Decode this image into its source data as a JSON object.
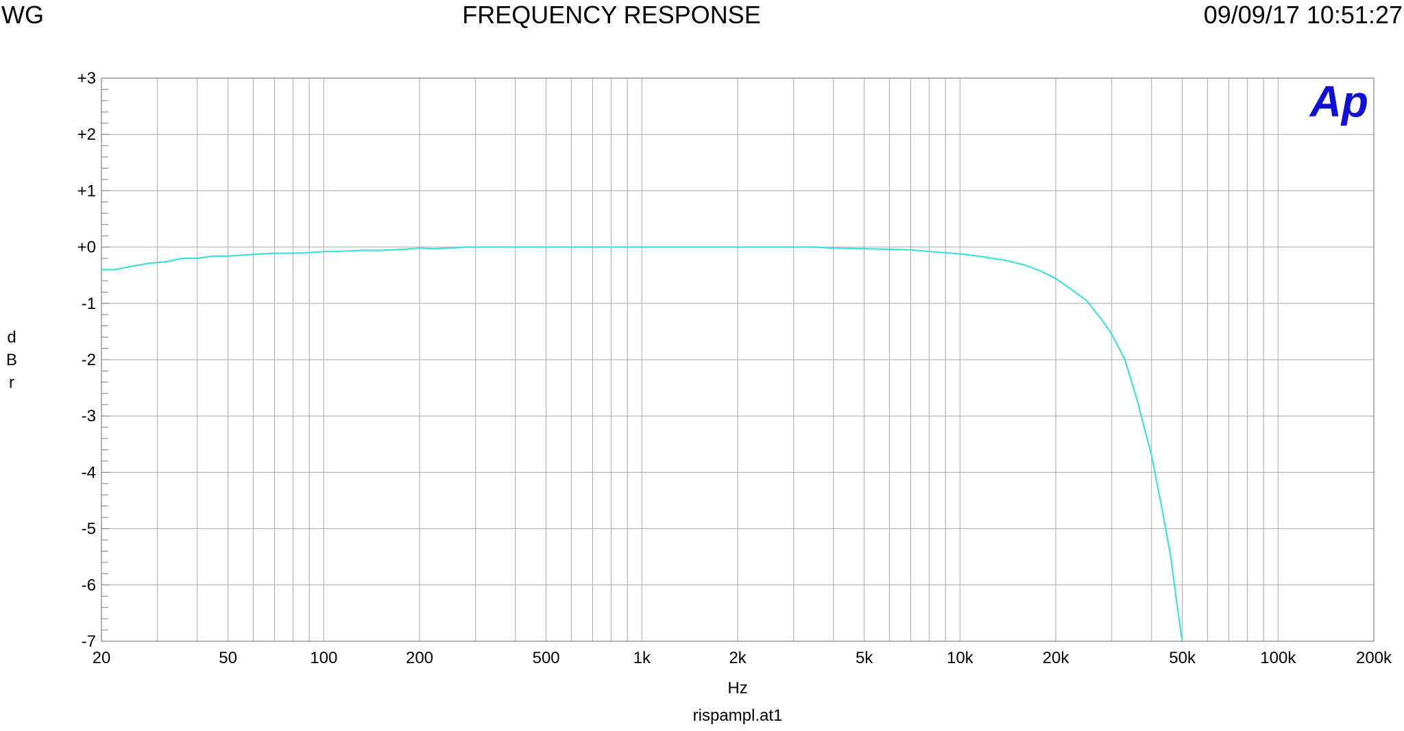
{
  "header": {
    "left": "WG",
    "title": "FREQUENCY RESPONSE",
    "timestamp": "09/09/17 10:51:27"
  },
  "logo": {
    "text": "Ap",
    "color": "#1010d0"
  },
  "chart_data": {
    "type": "line",
    "title": "FREQUENCY RESPONSE",
    "xlabel": "Hz",
    "ylabel": "dBr",
    "caption": "rispampl.at1",
    "x_scale": "log",
    "xlim": [
      20,
      200000
    ],
    "ylim": [
      -7,
      3
    ],
    "grid": true,
    "x_tick_labels": [
      {
        "value": 20,
        "label": "20"
      },
      {
        "value": 50,
        "label": "50"
      },
      {
        "value": 100,
        "label": "100"
      },
      {
        "value": 200,
        "label": "200"
      },
      {
        "value": 500,
        "label": "500"
      },
      {
        "value": 1000,
        "label": "1k"
      },
      {
        "value": 2000,
        "label": "2k"
      },
      {
        "value": 5000,
        "label": "5k"
      },
      {
        "value": 10000,
        "label": "10k"
      },
      {
        "value": 20000,
        "label": "20k"
      },
      {
        "value": 50000,
        "label": "50k"
      },
      {
        "value": 100000,
        "label": "100k"
      },
      {
        "value": 200000,
        "label": "200k"
      }
    ],
    "y_tick_labels": [
      {
        "value": 3,
        "label": "+3"
      },
      {
        "value": 2,
        "label": "+2"
      },
      {
        "value": 1,
        "label": "+1"
      },
      {
        "value": 0,
        "label": "+0"
      },
      {
        "value": -1,
        "label": "-1"
      },
      {
        "value": -2,
        "label": "-2"
      },
      {
        "value": -3,
        "label": "-3"
      },
      {
        "value": -4,
        "label": "-4"
      },
      {
        "value": -5,
        "label": "-5"
      },
      {
        "value": -6,
        "label": "-6"
      },
      {
        "value": -7,
        "label": "-7"
      }
    ],
    "series": [
      {
        "color": "#40e0d8",
        "x": [
          20,
          22,
          25,
          28,
          32,
          36,
          40,
          45,
          50,
          60,
          70,
          80,
          90,
          100,
          110,
          130,
          150,
          180,
          200,
          220,
          250,
          280,
          300,
          400,
          500,
          700,
          1000,
          2000,
          3000,
          3500,
          4000,
          5000,
          6000,
          7000,
          8000,
          9000,
          10000,
          11000,
          12000,
          14000,
          16000,
          18000,
          20000,
          22000,
          25000,
          28000,
          30000,
          33000,
          36000,
          40000,
          43000,
          46000,
          48000,
          49500,
          50000
        ],
        "y": [
          -0.4,
          -0.4,
          -0.34,
          -0.29,
          -0.26,
          -0.2,
          -0.2,
          -0.16,
          -0.16,
          -0.13,
          -0.11,
          -0.11,
          -0.1,
          -0.08,
          -0.08,
          -0.06,
          -0.06,
          -0.04,
          -0.02,
          -0.03,
          -0.02,
          0.0,
          0.0,
          0.0,
          0.0,
          0.0,
          0.0,
          0.0,
          0.0,
          0.0,
          -0.02,
          -0.03,
          -0.04,
          -0.05,
          -0.08,
          -0.1,
          -0.12,
          -0.15,
          -0.18,
          -0.24,
          -0.32,
          -0.43,
          -0.56,
          -0.72,
          -0.95,
          -1.3,
          -1.55,
          -2.0,
          -2.7,
          -3.7,
          -4.6,
          -5.5,
          -6.3,
          -6.85,
          -7.0
        ]
      }
    ]
  }
}
